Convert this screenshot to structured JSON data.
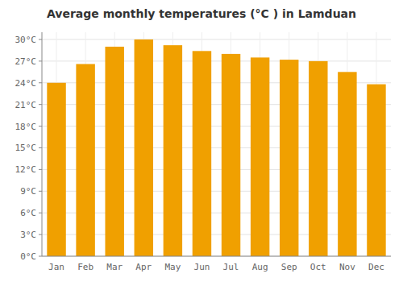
{
  "chart_data": {
    "type": "bar",
    "title": "Average monthly temperatures (°C ) in Lamduan",
    "categories": [
      "Jan",
      "Feb",
      "Mar",
      "Apr",
      "May",
      "Jun",
      "Jul",
      "Aug",
      "Sep",
      "Oct",
      "Nov",
      "Dec"
    ],
    "values": [
      24.0,
      26.6,
      29.0,
      30.0,
      29.2,
      28.4,
      28.0,
      27.5,
      27.2,
      27.0,
      25.5,
      23.8
    ],
    "color": "#F0A000",
    "ylim": [
      0,
      31
    ],
    "yticks": [
      {
        "value": 0,
        "label": "0°C"
      },
      {
        "value": 3,
        "label": "3°C"
      },
      {
        "value": 6,
        "label": "6°C"
      },
      {
        "value": 9,
        "label": "9°C"
      },
      {
        "value": 12,
        "label": "12°C"
      },
      {
        "value": 15,
        "label": "15°C"
      },
      {
        "value": 18,
        "label": "18°C"
      },
      {
        "value": 21,
        "label": "21°C"
      },
      {
        "value": 24,
        "label": "24°C"
      },
      {
        "value": 27,
        "label": "27°C"
      },
      {
        "value": 30,
        "label": "30°C"
      }
    ],
    "grid": true
  }
}
